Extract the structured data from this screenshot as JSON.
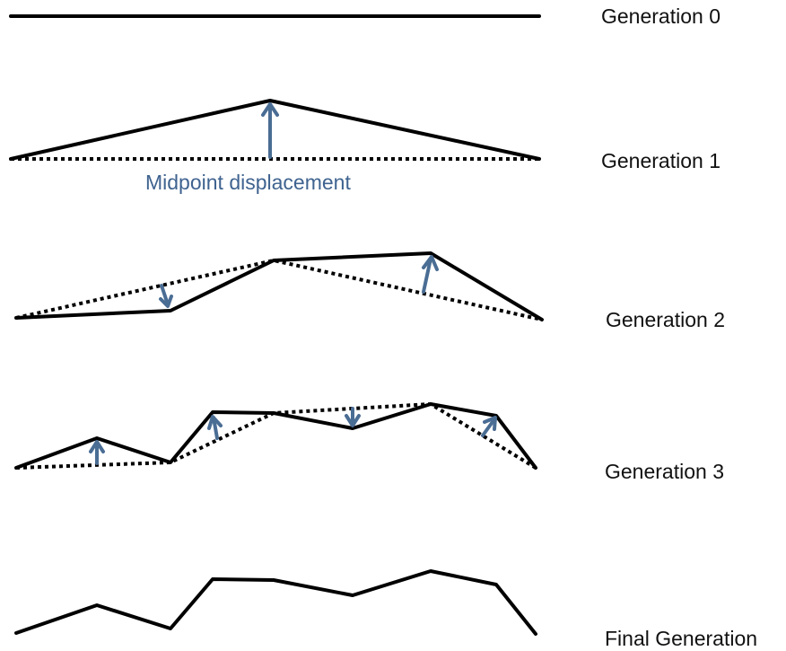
{
  "colors": {
    "line": "#000000",
    "arrow": "#4a6d94",
    "annotation_text": "#3f6390",
    "background": "#ffffff"
  },
  "labels": {
    "generation_0": "Generation 0",
    "generation_1": "Generation 1",
    "generation_2": "Generation 2",
    "generation_3": "Generation 3",
    "final_generation": "Final Generation",
    "midpoint_displacement": "Midpoint displacement"
  },
  "arrow_directions": {
    "generation_1": [
      "up"
    ],
    "generation_2": [
      "down",
      "up"
    ],
    "generation_3": [
      "up",
      "up",
      "down",
      "up"
    ]
  }
}
